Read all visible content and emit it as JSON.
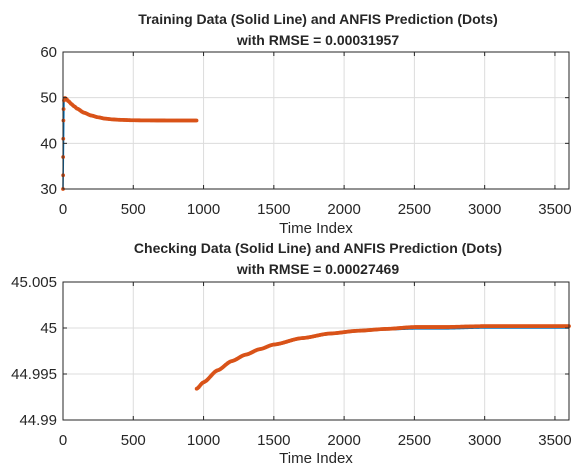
{
  "chart_data": [
    {
      "type": "line",
      "title": [
        "Training Data (Solid Line) and ANFIS Prediction (Dots)",
        "with RMSE = 0.00031957"
      ],
      "xlabel": "Time Index",
      "ylabel": "",
      "xlim": [
        0,
        3600
      ],
      "ylim": [
        30,
        60
      ],
      "xticks": [
        0,
        500,
        1000,
        1500,
        2000,
        2500,
        3000,
        3500
      ],
      "yticks": [
        30,
        40,
        50,
        60
      ],
      "grid": true,
      "series": [
        {
          "role": "data-solid-line",
          "color": "#0072bd",
          "x": [
            0,
            2,
            5,
            10,
            20,
            40,
            60,
            80,
            100,
            150,
            200,
            250,
            300,
            350,
            400,
            500,
            600,
            700,
            800,
            950
          ],
          "y": [
            30,
            40,
            49,
            50,
            49.8,
            49.2,
            48.6,
            48.1,
            47.6,
            46.7,
            46.1,
            45.7,
            45.4,
            45.25,
            45.15,
            45.05,
            45.02,
            45.01,
            45.0,
            45.0
          ]
        },
        {
          "role": "prediction-dots",
          "color": "#d95319",
          "x": [
            0,
            2,
            5,
            10,
            20,
            40,
            60,
            80,
            100,
            150,
            200,
            250,
            300,
            350,
            400,
            500,
            600,
            700,
            800,
            950
          ],
          "y": [
            30,
            40,
            49,
            50,
            49.8,
            49.2,
            48.6,
            48.1,
            47.6,
            46.7,
            46.1,
            45.7,
            45.4,
            45.25,
            45.15,
            45.05,
            45.02,
            45.01,
            45.0,
            45.0
          ]
        }
      ]
    },
    {
      "type": "line",
      "title": [
        "Checking Data (Solid Line) and ANFIS Prediction (Dots)",
        "with RMSE = 0.00027469"
      ],
      "xlabel": "Time Index",
      "ylabel": "",
      "xlim": [
        0,
        3600
      ],
      "ylim": [
        44.99,
        45.005
      ],
      "xticks": [
        0,
        500,
        1000,
        1500,
        2000,
        2500,
        3000,
        3500
      ],
      "yticks": [
        44.99,
        44.995,
        45,
        45.005
      ],
      "ytick_labels": [
        "44.99",
        "44.995",
        "45",
        "45.005"
      ],
      "grid": true,
      "series": [
        {
          "role": "data-solid-line",
          "color": "#0072bd",
          "x": [
            951,
            1000,
            1100,
            1200,
            1300,
            1400,
            1500,
            1700,
            1900,
            2100,
            2300,
            2500,
            2700,
            3000,
            3300,
            3600
          ],
          "y": [
            44.9933,
            44.994,
            44.9953,
            44.9963,
            44.997,
            44.9976,
            44.9981,
            44.9988,
            44.9993,
            44.9996,
            44.9998,
            44.9999,
            44.9999,
            45.0,
            45.0,
            45.0
          ]
        },
        {
          "role": "prediction-dots",
          "color": "#d95319",
          "x": [
            951,
            1000,
            1100,
            1200,
            1300,
            1400,
            1500,
            1700,
            1900,
            2100,
            2300,
            2500,
            2700,
            3000,
            3300,
            3600
          ],
          "y": [
            44.9934,
            44.9941,
            44.9954,
            44.9964,
            44.9971,
            44.9977,
            44.9982,
            44.9989,
            44.9994,
            44.9997,
            44.9999,
            45.0001,
            45.0001,
            45.0002,
            45.0002,
            45.0002
          ]
        }
      ]
    }
  ]
}
